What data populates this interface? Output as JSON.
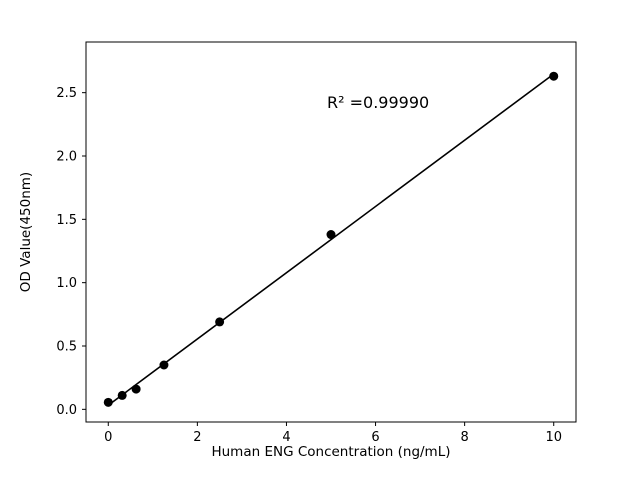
{
  "chart_data": {
    "type": "scatter",
    "title": "",
    "xlabel": "Human ENG Concentration (ng/mL)",
    "ylabel": "OD Value(450nm)",
    "annotation": "R² =0.99990",
    "x": [
      0,
      0.3125,
      0.625,
      1.25,
      2.5,
      5,
      10
    ],
    "y": [
      0.055,
      0.11,
      0.16,
      0.35,
      0.69,
      1.38,
      2.63
    ],
    "fit_line": {
      "x_start": 0,
      "x_end": 10
    },
    "xlim": [
      -0.5,
      10.5
    ],
    "ylim": [
      -0.1,
      2.9
    ],
    "x_ticks": [
      "0",
      "2",
      "4",
      "6",
      "8",
      "10"
    ],
    "y_ticks": [
      "0.0",
      "0.5",
      "1.0",
      "1.5",
      "2.0",
      "2.5"
    ],
    "grid": false,
    "legend": "none",
    "marker_color": "#000000",
    "line_color": "#000000",
    "axis_color": "#000000",
    "background": "#ffffff"
  }
}
